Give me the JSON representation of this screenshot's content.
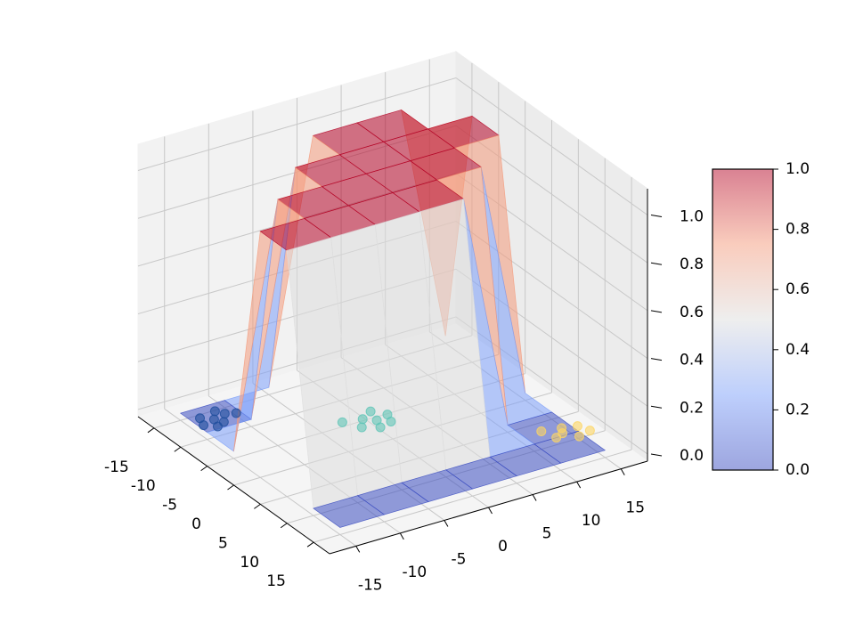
{
  "chart_data": {
    "type": "surface3d",
    "xlim": [
      -18,
      18
    ],
    "ylim": [
      -18,
      18
    ],
    "zlim": [
      -0.03,
      1.11
    ],
    "xticks": [
      -15,
      -10,
      -5,
      0,
      5,
      10,
      15
    ],
    "yticks": [
      -15,
      -10,
      -5,
      0,
      5,
      10,
      15
    ],
    "zticks": [
      {
        "value": 0,
        "label": "0.0"
      },
      {
        "value": 0.2,
        "label": "0.2"
      },
      {
        "value": 0.4,
        "label": "0.4"
      },
      {
        "value": 0.6,
        "label": "0.6"
      },
      {
        "value": 0.8,
        "label": "0.8"
      },
      {
        "value": 1,
        "label": "1.0"
      }
    ],
    "grid": true,
    "surface": {
      "colormap": "coolwarm",
      "x": [
        -15,
        -10,
        -5,
        0,
        5,
        10,
        15
      ],
      "y": [
        -15,
        -10,
        -5,
        0,
        5,
        10,
        15
      ],
      "z": [
        [
          0,
          0,
          0,
          1,
          1,
          1,
          0
        ],
        [
          0,
          0,
          1,
          1,
          1,
          1,
          1
        ],
        [
          0,
          1,
          1,
          1,
          1,
          1,
          1
        ],
        [
          1,
          1,
          1,
          1,
          1,
          1,
          0
        ],
        [
          1,
          1,
          1,
          1,
          1,
          0,
          0
        ],
        [
          0,
          0,
          0,
          0,
          0,
          0,
          0
        ],
        [
          0,
          0,
          0,
          0,
          0,
          0,
          0
        ]
      ]
    },
    "scatter": [
      {
        "color": "#1f4e9c",
        "x": [
          -12,
          -13,
          -11,
          -12.5,
          -10.5,
          -13.5,
          -11.5,
          -12
        ],
        "y": [
          -13,
          -14,
          -12.5,
          -11.5,
          -13.5,
          -12,
          -14.5,
          -10.5
        ],
        "z": [
          0,
          0,
          0,
          0,
          0,
          0,
          0,
          0
        ]
      },
      {
        "color": "#5fc4b6",
        "x": [
          -3,
          -4,
          -2,
          -3.5,
          -1.5,
          -5,
          -2.5,
          -4.5
        ],
        "y": [
          0,
          -1,
          1,
          1.5,
          -0.5,
          0.5,
          -2,
          -3
        ],
        "z": [
          0,
          0,
          0,
          0,
          0,
          0,
          0,
          0
        ]
      },
      {
        "color": "#fdd663",
        "x": [
          9.5,
          10,
          8.5,
          11,
          9,
          10.5,
          8
        ],
        "y": [
          13.5,
          12.5,
          14,
          14.5,
          15.5,
          16,
          12
        ],
        "z": [
          0,
          0,
          0,
          0,
          0,
          0,
          0
        ]
      }
    ],
    "colorbar": {
      "lim": [
        0,
        1
      ],
      "ticks": [
        {
          "value": 0,
          "label": "0.0"
        },
        {
          "value": 0.2,
          "label": "0.2"
        },
        {
          "value": 0.4,
          "label": "0.4"
        },
        {
          "value": 0.6,
          "label": "0.6"
        },
        {
          "value": 0.8,
          "label": "0.8"
        },
        {
          "value": 1,
          "label": "1.0"
        }
      ]
    }
  }
}
